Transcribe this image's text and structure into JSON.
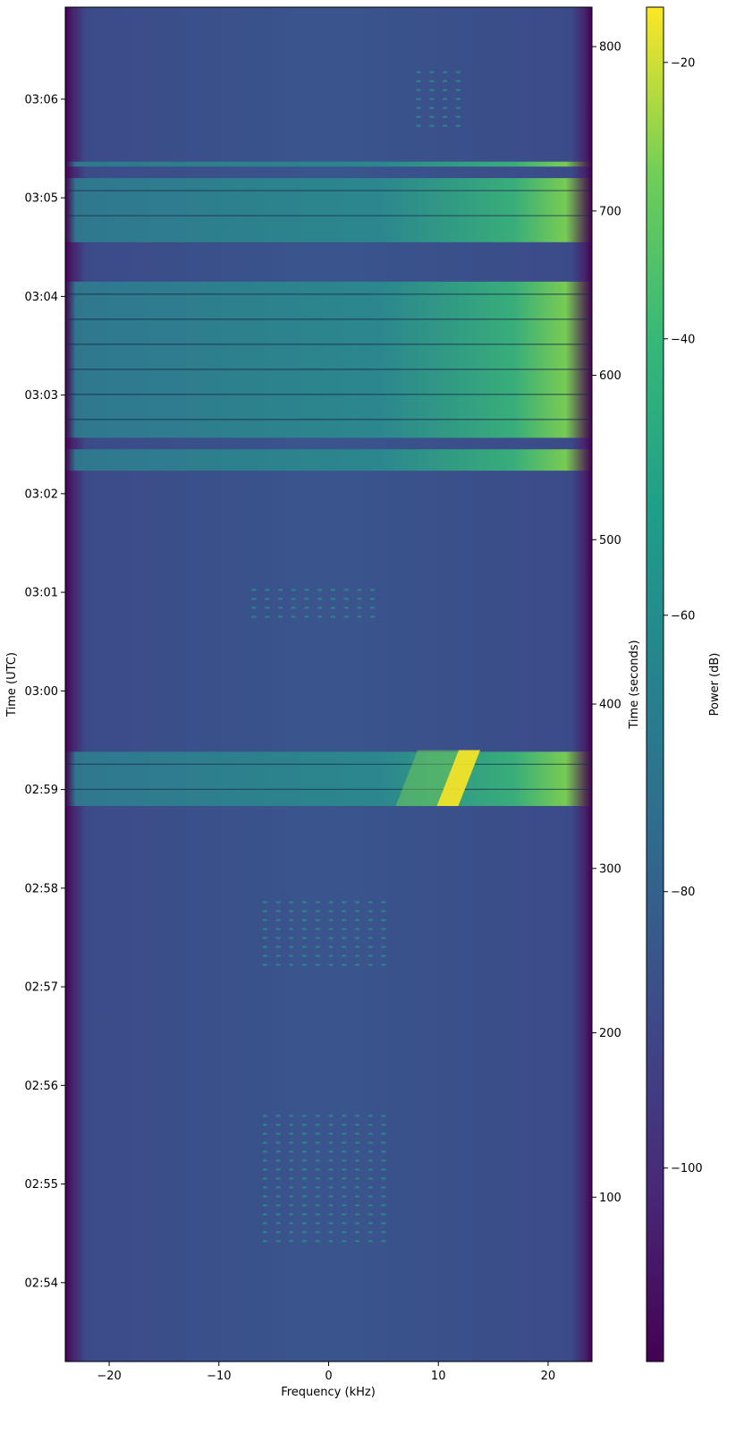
{
  "chart_data": {
    "type": "heatmap",
    "title": "",
    "xlabel": "Frequency (kHz)",
    "ylabel_left": "Time (UTC)",
    "ylabel_right": "Time (seconds)",
    "colorbar_label": "Power (dB)",
    "colormap": "viridis",
    "x_range": [
      -24,
      24
    ],
    "y_seconds_range": [
      0,
      824
    ],
    "y_utc_start": "02:53:12",
    "color_range": [
      -114,
      -16
    ],
    "x_ticks": [
      {
        "value": -20,
        "label": "−20"
      },
      {
        "value": -10,
        "label": "−10"
      },
      {
        "value": 0,
        "label": "0"
      },
      {
        "value": 10,
        "label": "10"
      },
      {
        "value": 20,
        "label": "20"
      }
    ],
    "y_ticks_utc": [
      {
        "time": "02:54",
        "label": "02:54"
      },
      {
        "time": "02:55",
        "label": "02:55"
      },
      {
        "time": "02:56",
        "label": "02:56"
      },
      {
        "time": "02:57",
        "label": "02:57"
      },
      {
        "time": "02:58",
        "label": "02:58"
      },
      {
        "time": "02:59",
        "label": "02:59"
      },
      {
        "time": "03:00",
        "label": "03:00"
      },
      {
        "time": "03:01",
        "label": "03:01"
      },
      {
        "time": "03:02",
        "label": "03:02"
      },
      {
        "time": "03:03",
        "label": "03:03"
      },
      {
        "time": "03:04",
        "label": "03:04"
      },
      {
        "time": "03:05",
        "label": "03:05"
      },
      {
        "time": "03:06",
        "label": "03:06"
      }
    ],
    "y_ticks_seconds": [
      {
        "value": 100,
        "label": "100"
      },
      {
        "value": 200,
        "label": "200"
      },
      {
        "value": 300,
        "label": "300"
      },
      {
        "value": 400,
        "label": "400"
      },
      {
        "value": 500,
        "label": "500"
      },
      {
        "value": 600,
        "label": "600"
      },
      {
        "value": 700,
        "label": "700"
      },
      {
        "value": 800,
        "label": "800"
      }
    ],
    "colorbar_ticks": [
      {
        "value": -20,
        "label": "−20"
      },
      {
        "value": -40,
        "label": "−40"
      },
      {
        "value": -60,
        "label": "−60"
      },
      {
        "value": -80,
        "label": "−80"
      },
      {
        "value": -100,
        "label": "−100"
      }
    ],
    "background_level_db": -92,
    "edge_level_db": -110,
    "broadband_bursts_seconds": [
      [
        371,
        338
      ],
      [
        555,
        542
      ],
      [
        657,
        562
      ],
      [
        720,
        681
      ],
      [
        727,
        730
      ]
    ],
    "strong_signal": {
      "freq_start_khz": 11,
      "freq_end_khz": 13,
      "t_start_s": 338,
      "t_end_s": 372,
      "level_db": -18
    },
    "dots_features": [
      {
        "t_start_s": 70,
        "t_end_s": 150,
        "freq_min_khz": -6,
        "freq_max_khz": 5
      },
      {
        "t_start_s": 240,
        "t_end_s": 280,
        "freq_min_khz": -6,
        "freq_max_khz": 5
      },
      {
        "t_start_s": 450,
        "t_end_s": 470,
        "freq_min_khz": -7,
        "freq_max_khz": 4
      },
      {
        "t_start_s": 750,
        "t_end_s": 785,
        "freq_min_khz": 8,
        "freq_max_khz": 12
      }
    ]
  }
}
